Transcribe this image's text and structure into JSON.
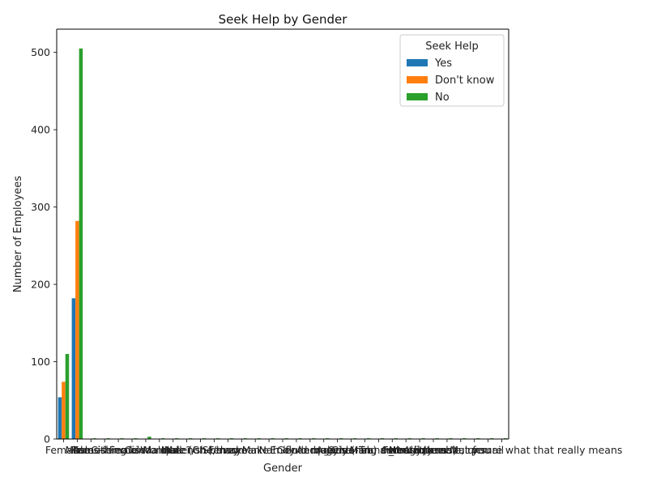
{
  "chart_data": {
    "type": "bar",
    "title": "Seek Help by Gender",
    "xlabel": "Gender",
    "ylabel": "Number of Employees",
    "ylim": [
      0,
      530
    ],
    "yticks": [
      0,
      100,
      200,
      300,
      400,
      500
    ],
    "grid": false,
    "legend": {
      "title": "Seek Help",
      "placement": "top-right"
    },
    "categories": [
      "Female",
      "Male",
      "Male-ish",
      "Trans-female",
      "Cis Female",
      "something kinda male?",
      "Cis Male",
      "Woman",
      "Mal",
      "Male (CIS)",
      "queer/she/they",
      "non-binary",
      "Femake",
      "woman",
      "Make",
      "Nah",
      "Enby",
      "fluid",
      "Genderqueer",
      "Androgyne",
      "Agender",
      "Cis Man",
      "Guy (-ish) ^_^",
      "male leaning androgynous",
      "Trans woman",
      "Neuter",
      "Female (trans)",
      "queer",
      "A little about you",
      "Malr",
      "p",
      "femail",
      "ostensibly male, unsure what that really means"
    ],
    "series": [
      {
        "name": "Yes",
        "color": "#1f77b4",
        "values": [
          54,
          182,
          0,
          0,
          0,
          0,
          0,
          0,
          0,
          0,
          0,
          0,
          0,
          0,
          0,
          0,
          0,
          0,
          0,
          0,
          0,
          0,
          0,
          0,
          0,
          0,
          0,
          0,
          0,
          0,
          0,
          0,
          0
        ]
      },
      {
        "name": "Don't know",
        "color": "#ff7f0e",
        "values": [
          74,
          282,
          0,
          0,
          0,
          0,
          0,
          0,
          0,
          0,
          0,
          0,
          0,
          0,
          0,
          0,
          0,
          0,
          0,
          0,
          0,
          0,
          0,
          0,
          0,
          0,
          0,
          0,
          0,
          0,
          0,
          0,
          0
        ]
      },
      {
        "name": "No",
        "color": "#2ca02c",
        "values": [
          110,
          505,
          1,
          1,
          1,
          1,
          3,
          1,
          1,
          1,
          1,
          1,
          1,
          1,
          1,
          1,
          1,
          1,
          1,
          1,
          1,
          1,
          1,
          1,
          1,
          1,
          1,
          1,
          1,
          1,
          1,
          1,
          1
        ]
      }
    ]
  }
}
